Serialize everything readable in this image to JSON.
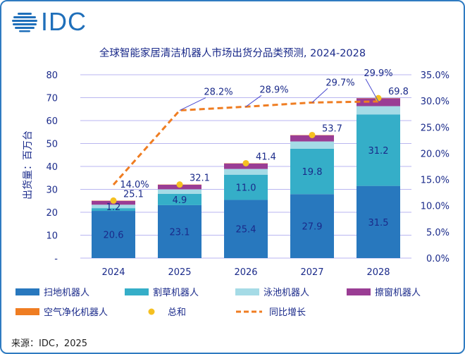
{
  "logo": "IDC",
  "source": "来源：IDC，2025",
  "chart_data": {
    "type": "bar",
    "title": "全球智能家居清洁机器人市场出货分品类预测, 2024-2028",
    "ylabel": "出货量：百万台",
    "ylim": [
      0,
      80
    ],
    "y_ticks": [
      "-",
      "10",
      "20",
      "30",
      "40",
      "50",
      "60",
      "70",
      "80"
    ],
    "y2lim": [
      0,
      35
    ],
    "y2_ticks": [
      "0.0%",
      "5.0%",
      "10.0%",
      "15.0%",
      "20.0%",
      "25.0%",
      "30.0%",
      "35.0%"
    ],
    "grid": true,
    "legend_placement": "bottom",
    "categories": [
      "2024",
      "2025",
      "2026",
      "2027",
      "2028"
    ],
    "series": [
      {
        "name": "扫地机器人",
        "color": "#2878be",
        "values": [
          20.6,
          23.1,
          25.4,
          27.9,
          31.5
        ],
        "labels": [
          "20.6",
          "23.1",
          "25.4",
          "27.9",
          "31.5"
        ]
      },
      {
        "name": "割草机器人",
        "color": "#35aec8",
        "values": [
          1.2,
          4.9,
          11.0,
          19.8,
          31.2
        ],
        "labels": [
          "1.2",
          "4.9",
          "11.0",
          "19.8",
          "31.2"
        ]
      },
      {
        "name": "泳池机器人",
        "color": "#a5dbe6",
        "values": [
          1.5,
          2.0,
          2.5,
          3.2,
          3.6
        ]
      },
      {
        "name": "擦窗机器人",
        "color": "#9a3d94",
        "values": [
          1.7,
          2.0,
          2.4,
          2.7,
          3.4
        ]
      },
      {
        "name": "空气净化机器人",
        "color": "#ef7d22",
        "values": [
          0.1,
          0.1,
          0.1,
          0.1,
          0.1
        ]
      }
    ],
    "total": {
      "name": "总和",
      "color": "#f5c021",
      "values": [
        25.1,
        32.1,
        41.4,
        53.7,
        69.8
      ],
      "labels": [
        "25.1",
        "32.1",
        "41.4",
        "53.7",
        "69.8"
      ]
    },
    "growth": {
      "name": "同比增长",
      "color": "#ef7d22",
      "values": [
        14.0,
        28.2,
        28.9,
        29.7,
        29.9
      ],
      "labels": [
        "14.0%",
        "28.2%",
        "28.9%",
        "29.7%",
        "29.9%"
      ]
    }
  }
}
